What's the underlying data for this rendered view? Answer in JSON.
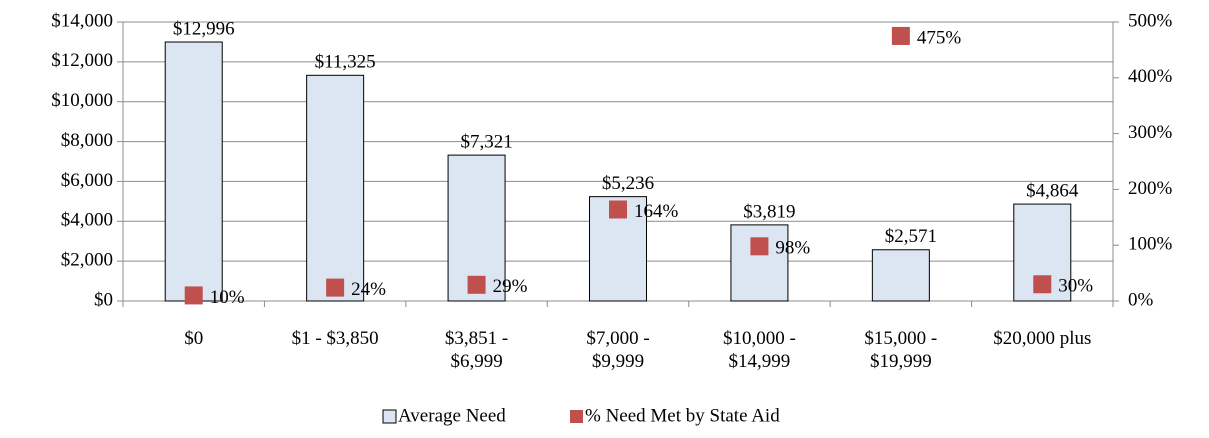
{
  "chart_data": {
    "type": "bar",
    "categories": [
      "$0",
      "$1 - $3,850",
      "$3,851 - $6,999",
      "$7,000 - $9,999",
      "$10,000 - $14,999",
      "$15,000 - $19,999",
      "$20,000 plus"
    ],
    "series": [
      {
        "name": "Average Need",
        "type": "bar",
        "color": "#dce6f2",
        "values": [
          12996,
          11325,
          7321,
          5236,
          3819,
          2571,
          4864
        ],
        "value_labels": [
          "$12,996",
          "$11,325",
          "$7,321",
          "$5,236",
          "$3,819",
          "$2,571",
          "$4,864"
        ]
      },
      {
        "name": "% Need Met by State Aid",
        "type": "scatter",
        "axis": "y2",
        "color": "#c0504d",
        "values": [
          10,
          24,
          29,
          164,
          98,
          475,
          30
        ],
        "value_labels": [
          "10%",
          "24%",
          "29%",
          "164%",
          "98%",
          "475%",
          "30%"
        ]
      }
    ],
    "ylim": [
      0,
      14000
    ],
    "yticks": [
      {
        "value": 0,
        "label": "$0"
      },
      {
        "value": 2000,
        "label": "$2,000"
      },
      {
        "value": 4000,
        "label": "$4,000"
      },
      {
        "value": 6000,
        "label": "$6,000"
      },
      {
        "value": 8000,
        "label": "$8,000"
      },
      {
        "value": 10000,
        "label": "$10,000"
      },
      {
        "value": 12000,
        "label": "$12,000"
      },
      {
        "value": 14000,
        "label": "$14,000"
      }
    ],
    "y2lim": [
      0,
      500
    ],
    "y2ticks": [
      {
        "value": 0,
        "label": "0%"
      },
      {
        "value": 100,
        "label": "100%"
      },
      {
        "value": 200,
        "label": "200%"
      },
      {
        "value": 300,
        "label": "300%"
      },
      {
        "value": 400,
        "label": "400%"
      },
      {
        "value": 500,
        "label": "500%"
      }
    ],
    "grid": true,
    "legend": "bottom"
  }
}
